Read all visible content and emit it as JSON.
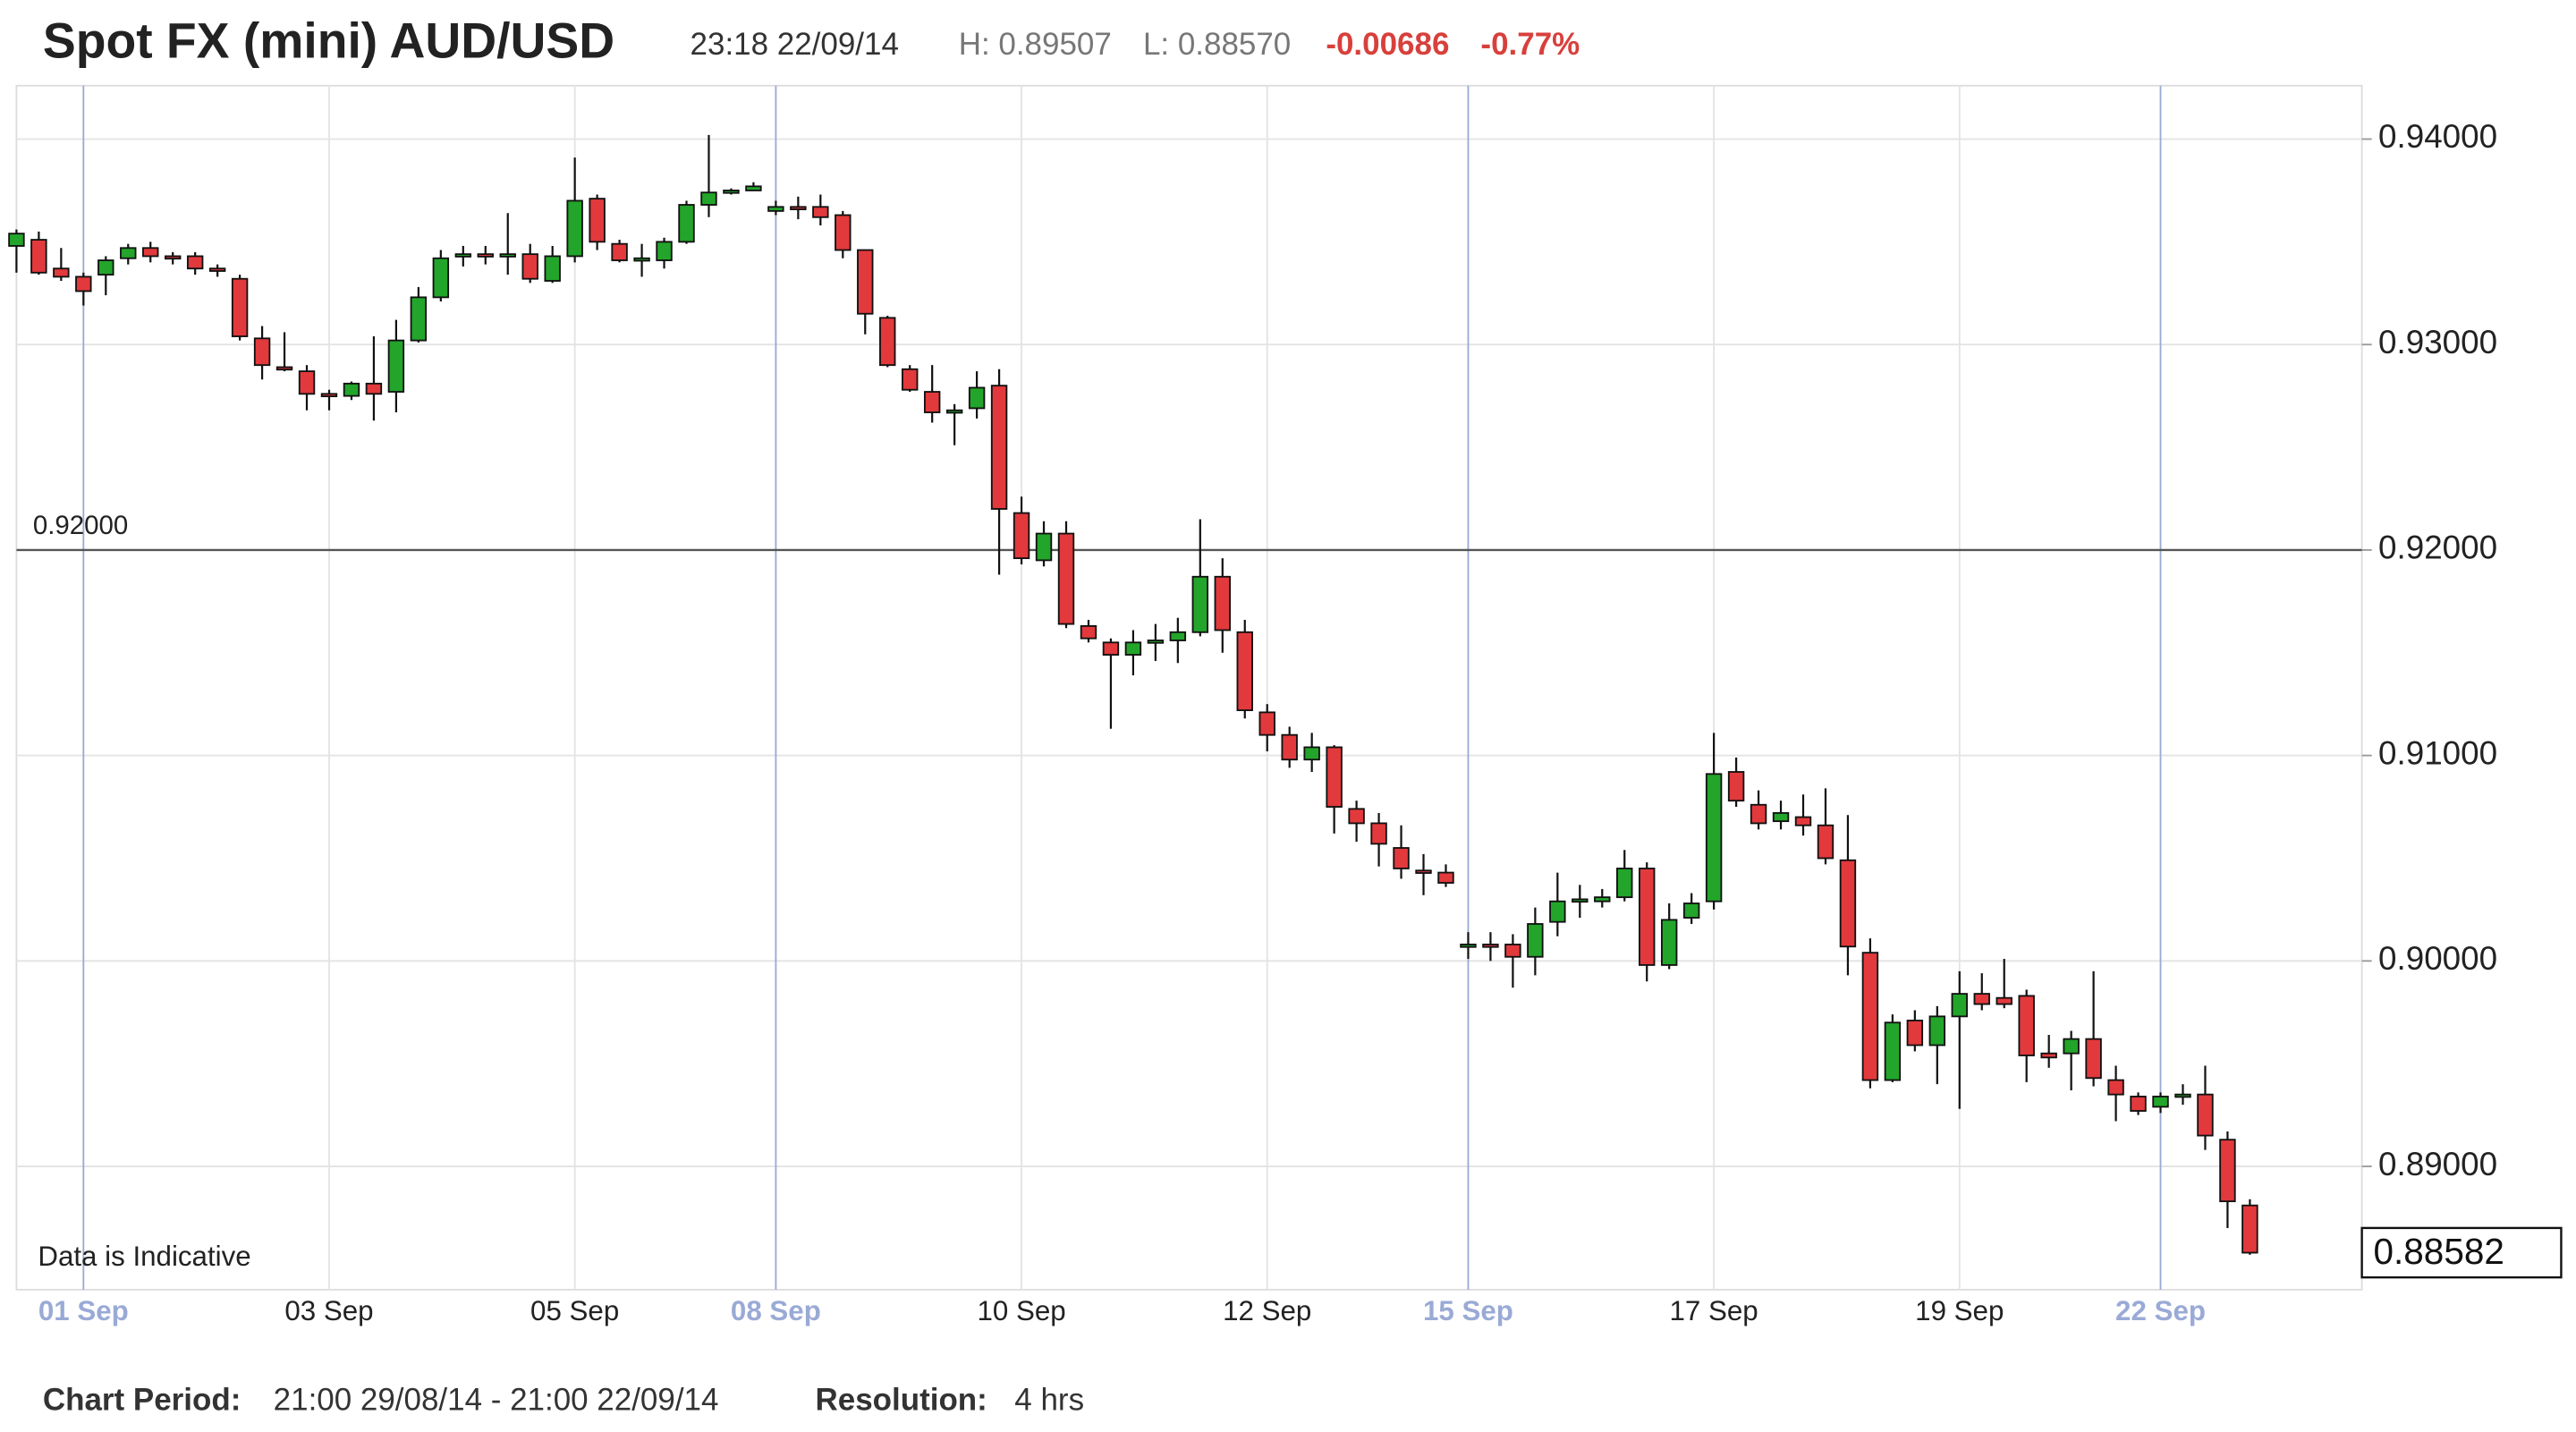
{
  "header": {
    "title": "Spot FX (mini) AUD/USD",
    "timestamp": "23:18 22/09/14",
    "high": "H: 0.89507",
    "low": "L: 0.88570",
    "change": "-0.00686",
    "change_pct": "-0.77%"
  },
  "footer": {
    "period_label": "Chart Period:",
    "period": "21:00 29/08/14 - 21:00 22/09/14",
    "resolution_label": "Resolution:",
    "resolution": "4 hrs"
  },
  "chart_data": {
    "type": "candlestick",
    "note": "Data is Indicative",
    "up_color": "#22a52a",
    "down_color": "#e2393c",
    "grid": true,
    "week_line_color": "#9aaad6",
    "week_start_indices": [
      3,
      34,
      65,
      96
    ],
    "reference_line": {
      "value": 0.92,
      "label": "0.92000"
    },
    "last_label": "0.88582",
    "ylim": [
      0.884,
      0.9426
    ],
    "yticks": [
      {
        "value": 0.89,
        "label": "0.89000"
      },
      {
        "value": 0.9,
        "label": "0.90000"
      },
      {
        "value": 0.91,
        "label": "0.91000"
      },
      {
        "value": 0.92,
        "label": "0.92000"
      },
      {
        "value": 0.93,
        "label": "0.93000"
      },
      {
        "value": 0.94,
        "label": "0.94000"
      }
    ],
    "categories": [
      null,
      null,
      null,
      "01 Sep",
      null,
      null,
      null,
      null,
      null,
      null,
      null,
      null,
      null,
      null,
      "03 Sep",
      null,
      null,
      null,
      null,
      null,
      null,
      null,
      null,
      null,
      null,
      "05 Sep",
      null,
      null,
      null,
      null,
      null,
      null,
      null,
      null,
      "08 Sep",
      null,
      null,
      null,
      null,
      null,
      null,
      null,
      null,
      null,
      null,
      "10 Sep",
      null,
      null,
      null,
      null,
      null,
      null,
      null,
      null,
      null,
      null,
      "12 Sep",
      null,
      null,
      null,
      null,
      null,
      null,
      null,
      null,
      "15 Sep",
      null,
      null,
      null,
      null,
      null,
      null,
      null,
      null,
      null,
      null,
      "17 Sep",
      null,
      null,
      null,
      null,
      null,
      null,
      null,
      null,
      null,
      null,
      "19 Sep",
      null,
      null,
      null,
      null,
      null,
      null,
      null,
      null,
      "22 Sep",
      null,
      null,
      null,
      null
    ],
    "open": [
      0.9348,
      0.9351,
      0.9337,
      0.9333,
      0.9334,
      0.9342,
      0.9347,
      0.9343,
      0.9343,
      0.9337,
      0.9332,
      0.9303,
      0.9289,
      0.9287,
      0.9276,
      0.9275,
      0.9281,
      0.9277,
      0.9302,
      0.9323,
      0.9343,
      0.9344,
      0.9343,
      0.9344,
      0.9331,
      0.9343,
      0.9371,
      0.9349,
      0.9341,
      0.9341,
      0.935,
      0.9368,
      0.9374,
      0.9375,
      0.9365,
      0.9367,
      0.9367,
      0.9363,
      0.9346,
      0.9313,
      0.9288,
      0.9277,
      0.9267,
      0.9269,
      0.928,
      0.9218,
      0.9195,
      0.9208,
      0.9163,
      0.9155,
      0.9149,
      0.9155,
      0.9156,
      0.916,
      0.9187,
      0.916,
      0.9121,
      0.911,
      0.9098,
      0.9104,
      0.9074,
      0.9067,
      0.9055,
      0.9044,
      0.9043,
      0.9007,
      0.9008,
      0.9008,
      0.9002,
      0.9019,
      0.9029,
      0.9029,
      0.9031,
      0.9045,
      0.8998,
      0.9021,
      0.9029,
      0.9092,
      0.9076,
      0.9068,
      0.907,
      0.9066,
      0.9049,
      0.9004,
      0.8942,
      0.8971,
      0.8959,
      0.8973,
      0.8984,
      0.8982,
      0.8983,
      0.8955,
      0.8955,
      0.8962,
      0.8942,
      0.8934,
      0.8929,
      0.8934,
      0.8935,
      0.8913,
      0.8881
    ],
    "high": [
      0.9356,
      0.9355,
      0.9347,
      0.9335,
      0.9343,
      0.9349,
      0.935,
      0.9345,
      0.9345,
      0.9339,
      0.9334,
      0.9309,
      0.9306,
      0.929,
      0.9278,
      0.9282,
      0.9304,
      0.9312,
      0.9328,
      0.9346,
      0.9348,
      0.9348,
      0.9364,
      0.9349,
      0.9348,
      0.9391,
      0.9373,
      0.9351,
      0.9349,
      0.9352,
      0.937,
      0.9402,
      0.9376,
      0.9379,
      0.937,
      0.9372,
      0.9373,
      0.9365,
      0.9346,
      0.9314,
      0.929,
      0.929,
      0.9271,
      0.9287,
      0.9288,
      0.9226,
      0.9214,
      0.9214,
      0.9166,
      0.9157,
      0.9161,
      0.9164,
      0.9167,
      0.9215,
      0.9196,
      0.9166,
      0.9125,
      0.9114,
      0.9111,
      0.9105,
      0.9078,
      0.9072,
      0.9066,
      0.9052,
      0.9047,
      0.9014,
      0.9014,
      0.9013,
      0.9026,
      0.9043,
      0.9037,
      0.9035,
      0.9054,
      0.9048,
      0.9028,
      0.9033,
      0.9111,
      0.9099,
      0.9083,
      0.9078,
      0.9081,
      0.9084,
      0.9071,
      0.9011,
      0.8974,
      0.8976,
      0.8978,
      0.8995,
      0.8994,
      0.9001,
      0.8986,
      0.8964,
      0.8966,
      0.8995,
      0.8949,
      0.8936,
      0.8936,
      0.894,
      0.8949,
      0.8917,
      0.8884
    ],
    "low": [
      0.9335,
      0.9334,
      0.9331,
      0.9319,
      0.9324,
      0.9339,
      0.934,
      0.9339,
      0.9334,
      0.9333,
      0.9302,
      0.9283,
      0.9287,
      0.9268,
      0.9268,
      0.9273,
      0.9263,
      0.9267,
      0.9301,
      0.9321,
      0.9338,
      0.9339,
      0.9334,
      0.933,
      0.933,
      0.934,
      0.9346,
      0.934,
      0.9333,
      0.9337,
      0.9349,
      0.9362,
      0.9373,
      0.9375,
      0.9363,
      0.9361,
      0.9358,
      0.9342,
      0.9305,
      0.9289,
      0.9277,
      0.9262,
      0.9251,
      0.9264,
      0.9188,
      0.9193,
      0.9192,
      0.9162,
      0.9155,
      0.9113,
      0.9139,
      0.9146,
      0.9145,
      0.9158,
      0.915,
      0.9118,
      0.9102,
      0.9094,
      0.9092,
      0.9062,
      0.9058,
      0.9046,
      0.904,
      0.9032,
      0.9036,
      0.9001,
      0.9,
      0.8987,
      0.8993,
      0.9012,
      0.9021,
      0.9026,
      0.9029,
      0.899,
      0.8996,
      0.9018,
      0.9025,
      0.9075,
      0.9064,
      0.9064,
      0.9061,
      0.9047,
      0.8993,
      0.8938,
      0.8941,
      0.8956,
      0.894,
      0.8928,
      0.8976,
      0.8977,
      0.8941,
      0.8948,
      0.8937,
      0.8939,
      0.8922,
      0.8925,
      0.8926,
      0.893,
      0.8908,
      0.887,
      0.8857
    ],
    "close": [
      0.9354,
      0.9335,
      0.9333,
      0.9326,
      0.9341,
      0.9347,
      0.9343,
      0.9342,
      0.9337,
      0.9336,
      0.9304,
      0.929,
      0.9288,
      0.9276,
      0.9275,
      0.9281,
      0.9276,
      0.9302,
      0.9323,
      0.9342,
      0.9344,
      0.9343,
      0.9344,
      0.9332,
      0.9343,
      0.937,
      0.935,
      0.9341,
      0.9342,
      0.935,
      0.9368,
      0.9374,
      0.9375,
      0.9377,
      0.9367,
      0.9366,
      0.9362,
      0.9346,
      0.9315,
      0.929,
      0.9278,
      0.9267,
      0.9268,
      0.9279,
      0.922,
      0.9196,
      0.9208,
      0.9164,
      0.9157,
      0.9149,
      0.9155,
      0.9156,
      0.916,
      0.9187,
      0.9161,
      0.9122,
      0.911,
      0.9098,
      0.9104,
      0.9075,
      0.9067,
      0.9057,
      0.9045,
      0.9043,
      0.9038,
      0.9008,
      0.9007,
      0.9002,
      0.9018,
      0.9029,
      0.903,
      0.9031,
      0.9045,
      0.8998,
      0.902,
      0.9028,
      0.9091,
      0.9078,
      0.9067,
      0.9072,
      0.9066,
      0.905,
      0.9007,
      0.8942,
      0.897,
      0.8959,
      0.8973,
      0.8984,
      0.8979,
      0.8979,
      0.8954,
      0.8953,
      0.8962,
      0.8943,
      0.8935,
      0.8927,
      0.8934,
      0.8935,
      0.8915,
      0.8883,
      0.8858
    ]
  }
}
